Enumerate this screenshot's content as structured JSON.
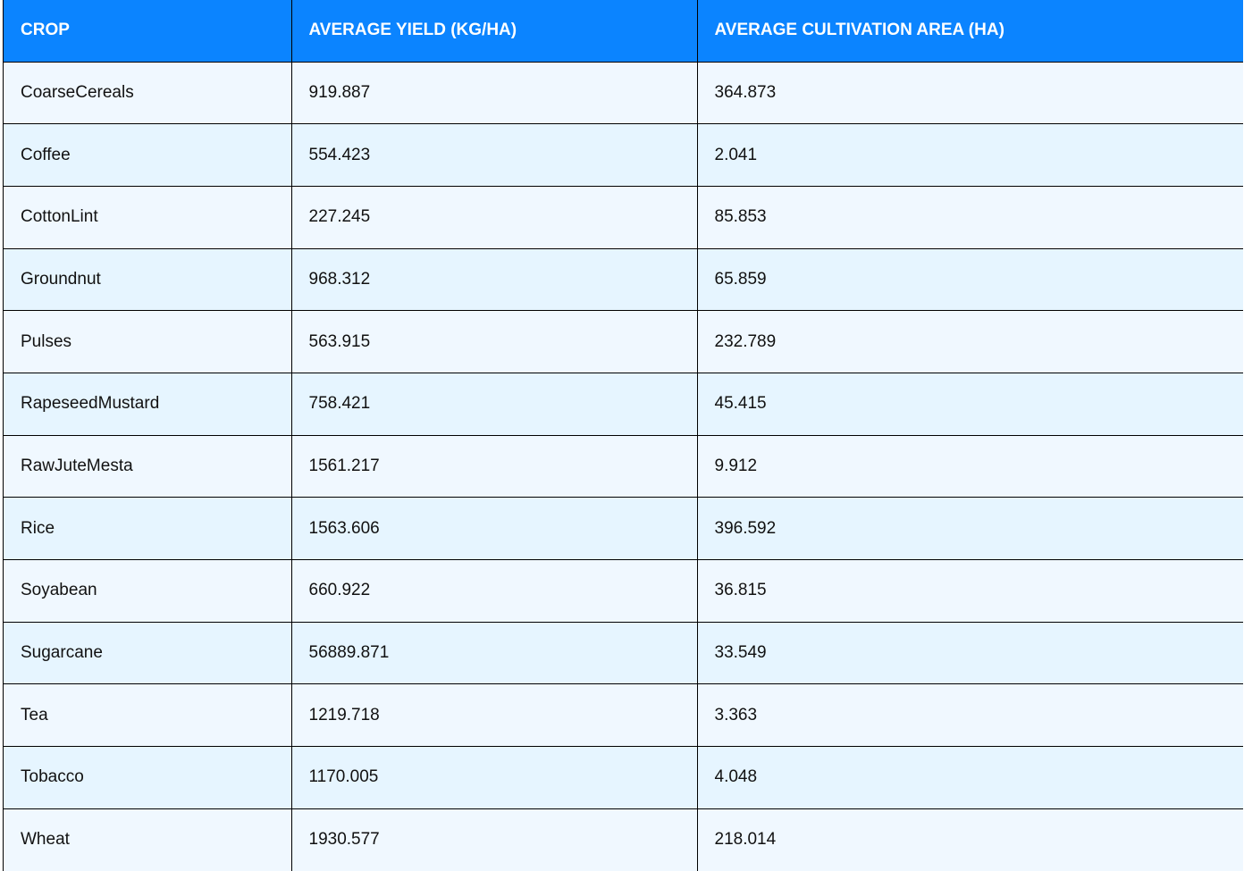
{
  "chart_data": {
    "type": "table",
    "columns": [
      "CROP",
      "AVERAGE YIELD (KG/HA)",
      "AVERAGE CULTIVATION AREA (HA)"
    ],
    "rows": [
      [
        "CoarseCereals",
        "919.887",
        "364.873"
      ],
      [
        "Coffee",
        "554.423",
        "2.041"
      ],
      [
        "CottonLint",
        "227.245",
        "85.853"
      ],
      [
        "Groundnut",
        "968.312",
        "65.859"
      ],
      [
        "Pulses",
        "563.915",
        "232.789"
      ],
      [
        "RapeseedMustard",
        "758.421",
        "45.415"
      ],
      [
        "RawJuteMesta",
        "1561.217",
        "9.912"
      ],
      [
        "Rice",
        "1563.606",
        "396.592"
      ],
      [
        "Soyabean",
        "660.922",
        "36.815"
      ],
      [
        "Sugarcane",
        "56889.871",
        "33.549"
      ],
      [
        "Tea",
        "1219.718",
        "3.363"
      ],
      [
        "Tobacco",
        "1170.005",
        "4.048"
      ],
      [
        "Wheat",
        "1930.577",
        "218.014"
      ]
    ]
  },
  "colors": {
    "header_bg": "#0b84ff",
    "header_text": "#ffffff",
    "row_odd_bg": "#f0f8ff",
    "row_even_bg": "#e6f5ff",
    "border": "#000000"
  }
}
